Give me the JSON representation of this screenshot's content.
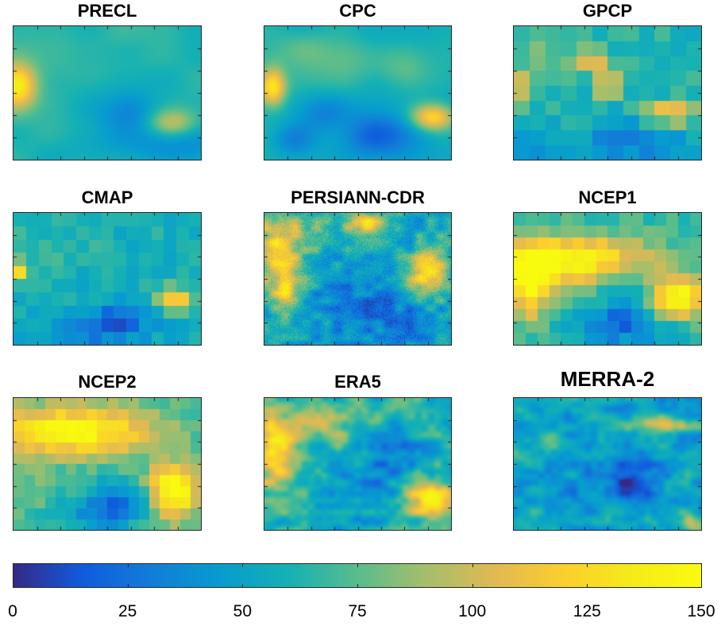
{
  "chart_data": [
    {
      "type": "heatmap",
      "title": "PRECL",
      "colormap": "parula",
      "clim": [
        0,
        150
      ],
      "grid_cols": 24,
      "grid_rows": 16,
      "texture": "smooth",
      "base": 62,
      "features": [
        [
          0.02,
          0.45,
          0.07,
          0.12,
          70
        ],
        [
          0.84,
          0.72,
          0.09,
          0.07,
          40
        ],
        [
          0.62,
          0.65,
          0.12,
          0.12,
          -25
        ],
        [
          0.88,
          0.92,
          0.18,
          0.1,
          -22
        ],
        [
          0.5,
          0.9,
          0.2,
          0.12,
          -10
        ],
        [
          0.3,
          0.2,
          0.35,
          0.15,
          8
        ]
      ]
    },
    {
      "type": "heatmap",
      "title": "CPC",
      "colormap": "parula",
      "clim": [
        0,
        150
      ],
      "grid_cols": 48,
      "grid_rows": 32,
      "texture": "smooth",
      "base": 58,
      "features": [
        [
          0.04,
          0.45,
          0.05,
          0.1,
          80
        ],
        [
          0.9,
          0.68,
          0.08,
          0.07,
          70
        ],
        [
          0.6,
          0.82,
          0.15,
          0.12,
          -35
        ],
        [
          0.3,
          0.65,
          0.1,
          0.1,
          -20
        ],
        [
          0.15,
          0.85,
          0.08,
          0.08,
          -22
        ],
        [
          0.45,
          0.25,
          0.2,
          0.12,
          15
        ],
        [
          0.75,
          0.3,
          0.1,
          0.1,
          12
        ],
        [
          0.2,
          0.15,
          0.1,
          0.1,
          10
        ]
      ]
    },
    {
      "type": "heatmap",
      "title": "GPCP",
      "colormap": "parula",
      "clim": [
        0,
        150
      ],
      "grid_cols": 12,
      "grid_rows": 9,
      "texture": "blocky",
      "base": 62,
      "features": [
        [
          0.5,
          0.45,
          0.04,
          0.06,
          85
        ],
        [
          0.42,
          0.25,
          0.06,
          0.05,
          55
        ],
        [
          0.83,
          0.65,
          0.09,
          0.06,
          70
        ],
        [
          0.03,
          0.45,
          0.05,
          0.08,
          45
        ],
        [
          0.65,
          0.85,
          0.2,
          0.12,
          -30
        ],
        [
          0.15,
          0.9,
          0.15,
          0.1,
          -15
        ],
        [
          0.2,
          0.2,
          0.15,
          0.15,
          15
        ]
      ]
    },
    {
      "type": "heatmap",
      "title": "CMAP",
      "colormap": "parula",
      "clim": [
        0,
        150
      ],
      "grid_cols": 15,
      "grid_rows": 10,
      "texture": "blocky",
      "base": 58,
      "features": [
        [
          0.03,
          0.45,
          0.04,
          0.06,
          65
        ],
        [
          0.86,
          0.65,
          0.07,
          0.06,
          60
        ],
        [
          0.55,
          0.82,
          0.13,
          0.1,
          -35
        ],
        [
          0.35,
          0.9,
          0.2,
          0.1,
          -18
        ],
        [
          0.2,
          0.2,
          0.2,
          0.15,
          8
        ]
      ]
    },
    {
      "type": "heatmap",
      "title": "PERSIANN-CDR",
      "colormap": "parula",
      "clim": [
        0,
        150
      ],
      "grid_cols": 118,
      "grid_rows": 82,
      "texture": "noisy",
      "base": 52,
      "features": [
        [
          0.08,
          0.25,
          0.09,
          0.22,
          70
        ],
        [
          0.12,
          0.6,
          0.06,
          0.1,
          50
        ],
        [
          0.55,
          0.08,
          0.08,
          0.06,
          75
        ],
        [
          0.88,
          0.45,
          0.08,
          0.13,
          85
        ],
        [
          0.3,
          0.15,
          0.08,
          0.08,
          25
        ],
        [
          0.55,
          0.7,
          0.2,
          0.2,
          -25
        ],
        [
          0.8,
          0.85,
          0.15,
          0.1,
          -15
        ]
      ]
    },
    {
      "type": "heatmap",
      "title": "NCEP1",
      "colormap": "parula",
      "clim": [
        0,
        150
      ],
      "grid_cols": 16,
      "grid_rows": 11,
      "texture": "blocky",
      "base": 65,
      "features": [
        [
          0.3,
          0.35,
          0.3,
          0.13,
          80
        ],
        [
          0.08,
          0.55,
          0.08,
          0.18,
          75
        ],
        [
          0.88,
          0.65,
          0.1,
          0.12,
          85
        ],
        [
          0.55,
          0.85,
          0.15,
          0.1,
          -45
        ],
        [
          0.6,
          0.6,
          0.08,
          0.1,
          -25
        ],
        [
          0.85,
          0.9,
          0.1,
          0.08,
          -15
        ]
      ]
    },
    {
      "type": "heatmap",
      "title": "NCEP2",
      "colormap": "parula",
      "clim": [
        0,
        150
      ],
      "grid_cols": 18,
      "grid_rows": 12,
      "texture": "blocky",
      "base": 70,
      "features": [
        [
          0.3,
          0.25,
          0.3,
          0.13,
          80
        ],
        [
          0.85,
          0.7,
          0.09,
          0.14,
          90
        ],
        [
          0.55,
          0.8,
          0.13,
          0.12,
          -45
        ],
        [
          0.35,
          0.9,
          0.12,
          0.08,
          -20
        ],
        [
          0.1,
          0.7,
          0.08,
          0.1,
          10
        ]
      ]
    },
    {
      "type": "heatmap",
      "title": "ERA5",
      "colormap": "parula",
      "clim": [
        0,
        150
      ],
      "grid_cols": 118,
      "grid_rows": 82,
      "texture": "fibrous",
      "base": 60,
      "features": [
        [
          0.06,
          0.4,
          0.07,
          0.2,
          70
        ],
        [
          0.3,
          0.2,
          0.2,
          0.1,
          30
        ],
        [
          0.88,
          0.75,
          0.1,
          0.1,
          80
        ],
        [
          0.6,
          0.6,
          0.15,
          0.15,
          -30
        ],
        [
          0.75,
          0.35,
          0.12,
          0.1,
          -18
        ],
        [
          0.45,
          0.85,
          0.12,
          0.08,
          -15
        ]
      ]
    },
    {
      "type": "heatmap",
      "title": "MERRA-2",
      "colormap": "parula",
      "clim": [
        0,
        150
      ],
      "grid_cols": 118,
      "grid_rows": 82,
      "texture": "fibrous",
      "base": 50,
      "features": [
        [
          0.65,
          0.65,
          0.12,
          0.14,
          -30
        ],
        [
          0.8,
          0.2,
          0.12,
          0.04,
          45
        ],
        [
          0.2,
          0.35,
          0.15,
          0.1,
          15
        ],
        [
          0.95,
          0.95,
          0.04,
          0.05,
          50
        ],
        [
          0.45,
          0.55,
          0.15,
          0.15,
          -12
        ]
      ]
    }
  ],
  "colorbar": {
    "colormap": "parula",
    "range": [
      0,
      150
    ],
    "ticks": [
      "0",
      "25",
      "50",
      "75",
      "100",
      "125",
      "150"
    ],
    "tick_values": [
      0,
      25,
      50,
      75,
      100,
      125,
      150
    ]
  }
}
